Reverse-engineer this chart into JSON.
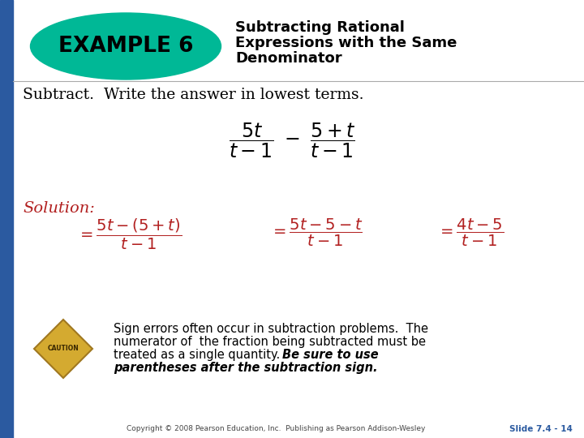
{
  "bg_color": "#ffffff",
  "left_bar_color": "#2b5aa0",
  "title_box_color": "#00b896",
  "title_box_text": "EXAMPLE 6",
  "title_box_text_color": "#000000",
  "title_text_line1": "Subtracting Rational",
  "title_text_line2": "Expressions with the Same",
  "title_text_line3": "Denominator",
  "title_text_color": "#000000",
  "subtitle": "Subtract.  Write the answer in lowest terms.",
  "subtitle_color": "#000000",
  "solution_label": "Solution:",
  "solution_color": "#b22020",
  "expr_color": "#b22020",
  "caution_text_color": "#000000",
  "caution_diamond_face": "#d4aa30",
  "caution_diamond_edge": "#a07820",
  "copyright": "Copyright © 2008 Pearson Education, Inc.  Publishing as Pearson Addison-Wesley",
  "slide_label": "Slide 7.4 - 14",
  "slide_label_color": "#2b5aa0"
}
